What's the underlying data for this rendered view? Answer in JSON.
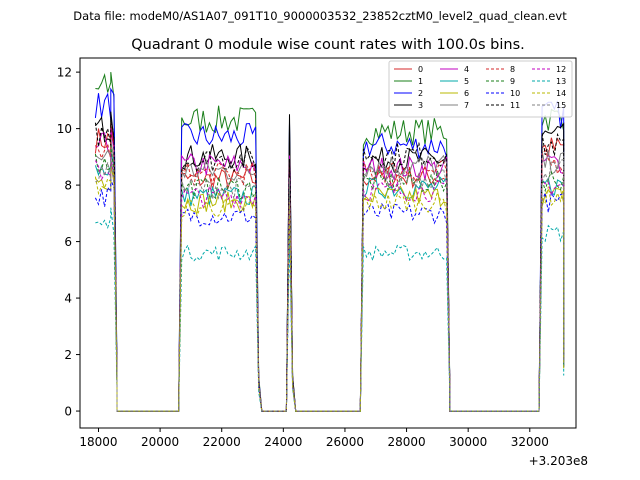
{
  "header": {
    "suptitle": "Data file: modeM0/AS1A07_091T10_9000003532_23852cztM0_level2_quad_clean.evt"
  },
  "chart_data": {
    "type": "line",
    "title": "Quadrant 0 module wise count rates with 100.0s bins.",
    "xlabel": "",
    "ylabel": "",
    "x_offset_label": "+3.203e8",
    "xlim": [
      17400,
      33500
    ],
    "ylim": [
      -0.6,
      12.5
    ],
    "xticks": [
      18000,
      20000,
      22000,
      24000,
      26000,
      28000,
      30000,
      32000
    ],
    "yticks": [
      0,
      2,
      4,
      6,
      8,
      10,
      12
    ],
    "grid": false,
    "legend": {
      "placement": "top-right",
      "columns": 4
    },
    "segments": [
      {
        "start": 17900,
        "end": 18500,
        "drop_to": 18600
      },
      {
        "start": 20700,
        "end": 23100,
        "rise_from": 20600,
        "drop_to": 23300
      },
      {
        "start": 24200,
        "end": 24200,
        "rise_from": 24100,
        "drop_to": 24400
      },
      {
        "start": 26600,
        "end": 29300,
        "rise_from": 26500,
        "drop_to": 29400
      },
      {
        "start": 32400,
        "end": 33100,
        "rise_from": 32300
      }
    ],
    "zero_range": [
      18700,
      32300
    ],
    "series": [
      {
        "name": "0",
        "color": "#d62728",
        "dash": "solid",
        "levels": [
          9.6,
          8.2,
          9.2,
          8.3,
          9.3
        ]
      },
      {
        "name": "1",
        "color": "#1a7f1a",
        "dash": "solid",
        "levels": [
          11.4,
          10.3,
          10.4,
          9.9,
          10.4
        ]
      },
      {
        "name": "2",
        "color": "#0000ff",
        "dash": "solid",
        "levels": [
          10.8,
          9.7,
          9.8,
          9.4,
          10.5
        ]
      },
      {
        "name": "3",
        "color": "#000000",
        "dash": "solid",
        "levels": [
          10.0,
          9.0,
          10.4,
          8.9,
          9.7
        ]
      },
      {
        "name": "4",
        "color": "#c000c0",
        "dash": "solid",
        "levels": [
          9.4,
          8.7,
          8.7,
          8.6,
          8.8
        ]
      },
      {
        "name": "5",
        "color": "#00a8a8",
        "dash": "solid",
        "levels": [
          8.6,
          7.6,
          7.8,
          7.9,
          8.0
        ]
      },
      {
        "name": "6",
        "color": "#b8b800",
        "dash": "solid",
        "levels": [
          8.2,
          7.4,
          7.4,
          7.6,
          7.6
        ]
      },
      {
        "name": "7",
        "color": "#808080",
        "dash": "solid",
        "levels": [
          9.0,
          8.5,
          8.6,
          8.7,
          8.8
        ]
      },
      {
        "name": "8",
        "color": "#d62728",
        "dash": "dashed",
        "levels": [
          9.2,
          8.4,
          8.6,
          8.5,
          8.8
        ]
      },
      {
        "name": "9",
        "color": "#1a7f1a",
        "dash": "dashed",
        "levels": [
          8.8,
          7.9,
          8.0,
          8.1,
          8.2
        ]
      },
      {
        "name": "10",
        "color": "#0000ff",
        "dash": "dashed",
        "levels": [
          7.6,
          6.9,
          7.0,
          7.0,
          7.4
        ]
      },
      {
        "name": "11",
        "color": "#000000",
        "dash": "dashed",
        "levels": [
          9.8,
          8.9,
          9.0,
          9.1,
          9.4
        ]
      },
      {
        "name": "12",
        "color": "#c000c0",
        "dash": "dashed",
        "levels": [
          8.5,
          7.6,
          7.7,
          7.8,
          8.0
        ]
      },
      {
        "name": "13",
        "color": "#00a8a8",
        "dash": "dashed",
        "levels": [
          6.6,
          5.6,
          6.5,
          5.6,
          6.3
        ]
      },
      {
        "name": "14",
        "color": "#b8b800",
        "dash": "dashed",
        "levels": [
          8.0,
          7.2,
          7.3,
          7.4,
          7.6
        ]
      },
      {
        "name": "15",
        "color": "#808080",
        "dash": "dashed",
        "levels": [
          8.4,
          7.9,
          8.0,
          8.3,
          8.5
        ]
      }
    ]
  }
}
